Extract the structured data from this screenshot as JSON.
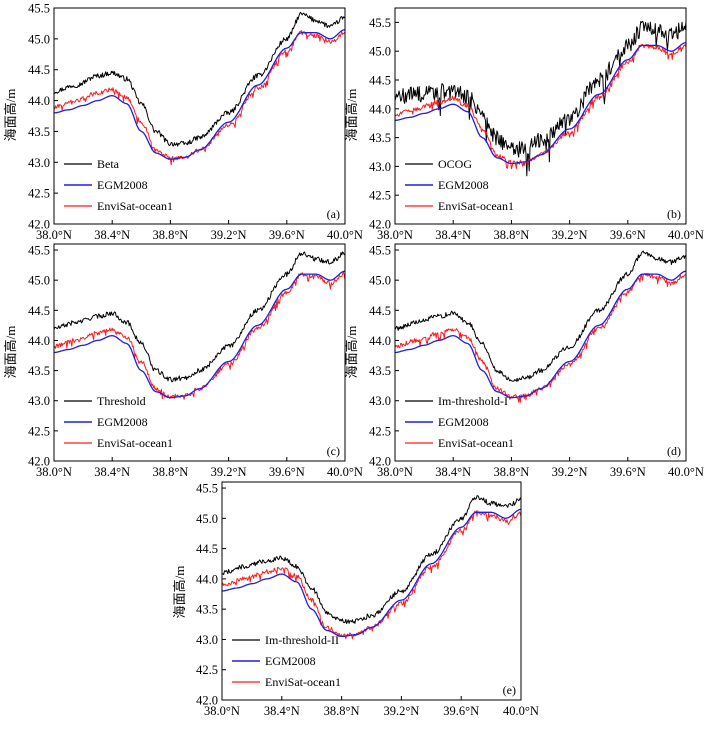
{
  "figure": {
    "ylabel": "海面高/m",
    "x_unit": "°N"
  },
  "colors": {
    "retracker": "#000000",
    "egm": "#1f1fe0",
    "ocean": "#ff1a1a"
  },
  "chart_data": [
    {
      "type": "line",
      "panel_label": "(a)",
      "ylabel": "海面高/m",
      "xlim": [
        38.0,
        40.0
      ],
      "ylim": [
        42.0,
        45.5
      ],
      "xticks": [
        "38.0°N",
        "38.4°N",
        "38.8°N",
        "39.2°N",
        "39.6°N",
        "40.0°N"
      ],
      "yticks": [
        "42.0",
        "42.5",
        "43.0",
        "43.5",
        "44.0",
        "44.5",
        "45.0",
        "45.5"
      ],
      "legend": [
        "Beta",
        "EGM2008",
        "EnviSat-ocean1"
      ],
      "noise": 0.04,
      "series": [
        {
          "name": "Beta",
          "role": "retracker",
          "x": [
            38.0,
            38.15,
            38.3,
            38.4,
            38.5,
            38.6,
            38.7,
            38.8,
            38.9,
            39.0,
            39.2,
            39.4,
            39.6,
            39.7,
            39.8,
            39.9,
            40.0
          ],
          "y": [
            44.15,
            44.25,
            44.4,
            44.45,
            44.35,
            43.95,
            43.5,
            43.3,
            43.3,
            43.4,
            43.8,
            44.4,
            45.0,
            45.4,
            45.3,
            45.2,
            45.35
          ]
        },
        {
          "name": "EGM2008",
          "role": "egm",
          "x": [
            38.0,
            38.1,
            38.2,
            38.3,
            38.4,
            38.5,
            38.6,
            38.7,
            38.8,
            38.9,
            39.0,
            39.2,
            39.4,
            39.6,
            39.7,
            39.8,
            39.9,
            40.0
          ],
          "y": [
            43.8,
            43.85,
            43.92,
            44.0,
            44.08,
            43.95,
            43.5,
            43.15,
            43.05,
            43.08,
            43.2,
            43.65,
            44.25,
            44.85,
            45.1,
            45.1,
            45.0,
            45.15
          ]
        },
        {
          "name": "EnviSat-ocean1",
          "role": "ocean",
          "x": [
            38.0,
            38.15,
            38.3,
            38.4,
            38.5,
            38.6,
            38.7,
            38.8,
            38.9,
            39.0,
            39.2,
            39.4,
            39.6,
            39.7,
            39.8,
            39.9,
            40.0
          ],
          "y": [
            43.9,
            44.0,
            44.12,
            44.18,
            44.05,
            43.65,
            43.2,
            43.07,
            43.08,
            43.2,
            43.6,
            44.2,
            44.8,
            45.1,
            45.05,
            44.95,
            45.1
          ]
        }
      ]
    },
    {
      "type": "line",
      "panel_label": "(b)",
      "ylabel": "海面高/m",
      "xlim": [
        38.0,
        40.0
      ],
      "ylim": [
        42.0,
        45.75
      ],
      "xticks": [
        "38.0°N",
        "38.4°N",
        "38.8°N",
        "39.2°N",
        "39.6°N",
        "40.0°N"
      ],
      "yticks": [
        "42.0",
        "42.5",
        "43.0",
        "43.5",
        "44.0",
        "44.5",
        "45.0",
        "45.5"
      ],
      "legend": [
        "OCOG",
        "EGM2008",
        "EnviSat-ocean1"
      ],
      "noise": 0.14,
      "series": [
        {
          "name": "OCOG",
          "role": "retracker",
          "x": [
            38.0,
            38.15,
            38.3,
            38.4,
            38.5,
            38.6,
            38.7,
            38.8,
            38.9,
            39.0,
            39.2,
            39.4,
            39.6,
            39.7,
            39.8,
            39.9,
            40.0
          ],
          "y": [
            44.2,
            44.25,
            44.3,
            44.3,
            44.2,
            43.9,
            43.5,
            43.3,
            43.3,
            43.45,
            43.85,
            44.5,
            45.1,
            45.4,
            45.35,
            45.3,
            45.4
          ]
        },
        {
          "name": "EGM2008",
          "role": "egm",
          "x": [
            38.0,
            38.1,
            38.2,
            38.3,
            38.4,
            38.5,
            38.6,
            38.7,
            38.8,
            38.9,
            39.0,
            39.2,
            39.4,
            39.6,
            39.7,
            39.8,
            39.9,
            40.0
          ],
          "y": [
            43.8,
            43.85,
            43.92,
            44.0,
            44.08,
            43.95,
            43.5,
            43.15,
            43.05,
            43.08,
            43.2,
            43.65,
            44.25,
            44.85,
            45.1,
            45.1,
            45.0,
            45.15
          ]
        },
        {
          "name": "EnviSat-ocean1",
          "role": "ocean",
          "x": [
            38.0,
            38.15,
            38.3,
            38.4,
            38.5,
            38.6,
            38.7,
            38.8,
            38.9,
            39.0,
            39.2,
            39.4,
            39.6,
            39.7,
            39.8,
            39.9,
            40.0
          ],
          "y": [
            43.9,
            44.0,
            44.12,
            44.18,
            44.05,
            43.65,
            43.2,
            43.07,
            43.08,
            43.2,
            43.6,
            44.2,
            44.8,
            45.1,
            45.05,
            44.95,
            45.1
          ]
        }
      ]
    },
    {
      "type": "line",
      "panel_label": "(c)",
      "ylabel": "海面高/m",
      "xlim": [
        38.0,
        40.0
      ],
      "ylim": [
        42.0,
        45.6
      ],
      "xticks": [
        "38.0°N",
        "38.4°N",
        "38.8°N",
        "39.2°N",
        "39.6°N",
        "40.0°N"
      ],
      "yticks": [
        "42.0",
        "42.5",
        "43.0",
        "43.5",
        "44.0",
        "44.5",
        "45.0",
        "45.5"
      ],
      "legend": [
        "Threshold",
        "EGM2008",
        "EnviSat-ocean1"
      ],
      "noise": 0.04,
      "series": [
        {
          "name": "Threshold",
          "role": "retracker",
          "x": [
            38.0,
            38.15,
            38.3,
            38.4,
            38.5,
            38.6,
            38.7,
            38.8,
            38.9,
            39.0,
            39.2,
            39.4,
            39.6,
            39.7,
            39.8,
            39.9,
            40.0
          ],
          "y": [
            44.2,
            44.3,
            44.4,
            44.45,
            44.3,
            43.95,
            43.5,
            43.35,
            43.38,
            43.5,
            43.9,
            44.5,
            45.1,
            45.45,
            45.35,
            45.3,
            45.45
          ]
        },
        {
          "name": "EGM2008",
          "role": "egm",
          "x": [
            38.0,
            38.1,
            38.2,
            38.3,
            38.4,
            38.5,
            38.6,
            38.7,
            38.8,
            38.9,
            39.0,
            39.2,
            39.4,
            39.6,
            39.7,
            39.8,
            39.9,
            40.0
          ],
          "y": [
            43.8,
            43.85,
            43.92,
            44.0,
            44.08,
            43.95,
            43.5,
            43.15,
            43.05,
            43.08,
            43.2,
            43.65,
            44.25,
            44.85,
            45.1,
            45.1,
            45.0,
            45.15
          ]
        },
        {
          "name": "EnviSat-ocean1",
          "role": "ocean",
          "x": [
            38.0,
            38.15,
            38.3,
            38.4,
            38.5,
            38.6,
            38.7,
            38.8,
            38.9,
            39.0,
            39.2,
            39.4,
            39.6,
            39.7,
            39.8,
            39.9,
            40.0
          ],
          "y": [
            43.9,
            44.0,
            44.12,
            44.18,
            44.05,
            43.65,
            43.2,
            43.07,
            43.08,
            43.2,
            43.6,
            44.2,
            44.8,
            45.1,
            45.05,
            44.95,
            45.1
          ]
        }
      ]
    },
    {
      "type": "line",
      "panel_label": "(d)",
      "ylabel": "海面高/m",
      "xlim": [
        38.0,
        40.0
      ],
      "ylim": [
        42.0,
        45.6
      ],
      "xticks": [
        "38.0°N",
        "38.4°N",
        "38.8°N",
        "39.2°N",
        "39.6°N",
        "40.0°N"
      ],
      "yticks": [
        "42.0",
        "42.5",
        "43.0",
        "43.5",
        "44.0",
        "44.5",
        "45.0",
        "45.5"
      ],
      "legend": [
        "Im-threshold-I",
        "EGM2008",
        "EnviSat-ocean1"
      ],
      "noise": 0.04,
      "series": [
        {
          "name": "Im-threshold-I",
          "role": "retracker",
          "x": [
            38.0,
            38.15,
            38.3,
            38.4,
            38.5,
            38.6,
            38.7,
            38.8,
            38.9,
            39.0,
            39.2,
            39.4,
            39.6,
            39.7,
            39.8,
            39.9,
            40.0
          ],
          "y": [
            44.2,
            44.3,
            44.4,
            44.45,
            44.3,
            43.95,
            43.5,
            43.35,
            43.38,
            43.5,
            43.9,
            44.5,
            45.1,
            45.45,
            45.35,
            45.3,
            45.4
          ]
        },
        {
          "name": "EGM2008",
          "role": "egm",
          "x": [
            38.0,
            38.1,
            38.2,
            38.3,
            38.4,
            38.5,
            38.6,
            38.7,
            38.8,
            38.9,
            39.0,
            39.2,
            39.4,
            39.6,
            39.7,
            39.8,
            39.9,
            40.0
          ],
          "y": [
            43.8,
            43.85,
            43.92,
            44.0,
            44.08,
            43.95,
            43.5,
            43.15,
            43.05,
            43.08,
            43.2,
            43.65,
            44.25,
            44.85,
            45.1,
            45.1,
            45.0,
            45.15
          ]
        },
        {
          "name": "EnviSat-ocean1",
          "role": "ocean",
          "x": [
            38.0,
            38.15,
            38.3,
            38.4,
            38.5,
            38.6,
            38.7,
            38.8,
            38.9,
            39.0,
            39.2,
            39.4,
            39.6,
            39.7,
            39.8,
            39.9,
            40.0
          ],
          "y": [
            43.9,
            44.0,
            44.12,
            44.18,
            44.05,
            43.65,
            43.2,
            43.07,
            43.08,
            43.2,
            43.6,
            44.2,
            44.8,
            45.1,
            45.05,
            44.95,
            45.1
          ]
        }
      ]
    },
    {
      "type": "line",
      "panel_label": "(e)",
      "ylabel": "海面高/m",
      "xlim": [
        38.0,
        40.0
      ],
      "ylim": [
        42.0,
        45.6
      ],
      "xticks": [
        "38.0°N",
        "38.4°N",
        "38.8°N",
        "39.2°N",
        "39.6°N",
        "40.0°N"
      ],
      "yticks": [
        "42.0",
        "42.5",
        "43.0",
        "43.5",
        "44.0",
        "44.5",
        "45.0",
        "45.5"
      ],
      "legend": [
        "Im-threshold-II",
        "EGM2008",
        "EnviSat-ocean1"
      ],
      "noise": 0.04,
      "series": [
        {
          "name": "Im-threshold-II",
          "role": "retracker",
          "x": [
            38.0,
            38.15,
            38.3,
            38.4,
            38.5,
            38.6,
            38.7,
            38.8,
            38.9,
            39.0,
            39.2,
            39.4,
            39.6,
            39.7,
            39.8,
            39.9,
            40.0
          ],
          "y": [
            44.1,
            44.2,
            44.3,
            44.35,
            44.2,
            43.85,
            43.45,
            43.3,
            43.3,
            43.4,
            43.8,
            44.4,
            45.0,
            45.35,
            45.25,
            45.2,
            45.3
          ]
        },
        {
          "name": "EGM2008",
          "role": "egm",
          "x": [
            38.0,
            38.1,
            38.2,
            38.3,
            38.4,
            38.5,
            38.6,
            38.7,
            38.8,
            38.9,
            39.0,
            39.2,
            39.4,
            39.6,
            39.7,
            39.8,
            39.9,
            40.0
          ],
          "y": [
            43.8,
            43.85,
            43.92,
            44.0,
            44.08,
            43.95,
            43.5,
            43.15,
            43.05,
            43.08,
            43.2,
            43.65,
            44.25,
            44.85,
            45.1,
            45.1,
            45.0,
            45.15
          ]
        },
        {
          "name": "EnviSat-ocean1",
          "role": "ocean",
          "x": [
            38.0,
            38.15,
            38.3,
            38.4,
            38.5,
            38.6,
            38.7,
            38.8,
            38.9,
            39.0,
            39.2,
            39.4,
            39.6,
            39.7,
            39.8,
            39.9,
            40.0
          ],
          "y": [
            43.9,
            44.0,
            44.12,
            44.18,
            44.05,
            43.65,
            43.2,
            43.07,
            43.08,
            43.2,
            43.6,
            44.2,
            44.8,
            45.1,
            45.05,
            44.95,
            45.1
          ]
        }
      ]
    }
  ]
}
